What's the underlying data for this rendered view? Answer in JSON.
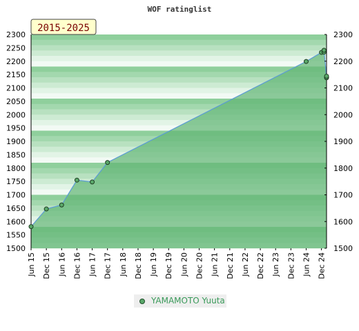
{
  "chart_data": {
    "type": "area",
    "title": "WOF ratinglist",
    "period_badge": "2015-2025",
    "ylim": [
      1500,
      2300
    ],
    "yticks": [
      1500,
      1550,
      1600,
      1650,
      1700,
      1750,
      1800,
      1850,
      1900,
      1950,
      2000,
      2050,
      2100,
      2150,
      2200,
      2250,
      2300
    ],
    "right_yticks": [
      1500,
      1600,
      1700,
      1800,
      1900,
      2000,
      2100,
      2200,
      2300
    ],
    "xticks": [
      "Jun 15",
      "Dec 15",
      "Jun 16",
      "Dec 16",
      "Jun 17",
      "Dec 17",
      "Jun 18",
      "Dec 18",
      "Jun 19",
      "Dec 19",
      "Jun 20",
      "Dec 20",
      "Jun 21",
      "Dec 21",
      "Jun 22",
      "Dec 22",
      "Jun 23",
      "Dec 23",
      "Jun 24",
      "Dec 24"
    ],
    "xlim": [
      "2015-06",
      "2025-02"
    ],
    "grid": false,
    "legend_position": "bottom-center",
    "series": [
      {
        "name": "YAMAMOTO Yuuta",
        "color": "#5aa86a",
        "line_color": "#5b9bd5",
        "points": [
          {
            "x": "2015-06",
            "y": 1581
          },
          {
            "x": "2015-12",
            "y": 1647
          },
          {
            "x": "2016-06",
            "y": 1662
          },
          {
            "x": "2016-12",
            "y": 1755
          },
          {
            "x": "2017-06",
            "y": 1748
          },
          {
            "x": "2017-12",
            "y": 1821
          },
          {
            "x": "2024-06",
            "y": 2199
          },
          {
            "x": "2024-12",
            "y": 2233
          },
          {
            "x": "2025-01",
            "y": 2234
          },
          {
            "x": "2025-01",
            "y": 2241
          },
          {
            "x": "2025-02",
            "y": 2138
          },
          {
            "x": "2025-02",
            "y": 2139
          },
          {
            "x": "2025-02",
            "y": 2144
          }
        ]
      }
    ]
  }
}
